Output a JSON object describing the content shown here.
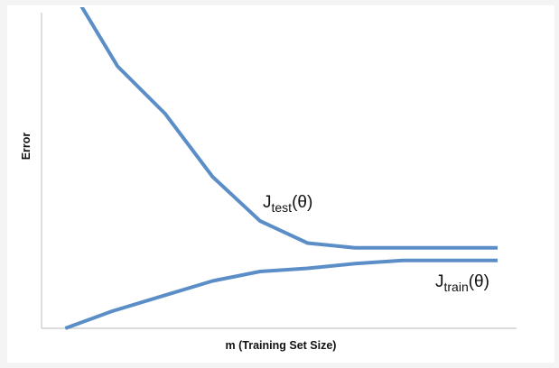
{
  "chart_data": {
    "type": "line",
    "xlabel": "m (Training Set Size)",
    "ylabel": "Error",
    "grid": false,
    "xlim": [
      0,
      10
    ],
    "ylim": [
      0,
      10
    ],
    "series": [
      {
        "name": "J_test(θ)",
        "label_main": "J",
        "label_sub": "test",
        "label_suffix": "(θ)",
        "color": "#5b8ec7",
        "points": [
          [
            0.8,
            10.3
          ],
          [
            1.6,
            8.3
          ],
          [
            2.6,
            6.8
          ],
          [
            3.6,
            4.8
          ],
          [
            4.6,
            3.4
          ],
          [
            5.6,
            2.7
          ],
          [
            6.6,
            2.55
          ],
          [
            7.6,
            2.55
          ],
          [
            8.6,
            2.55
          ],
          [
            9.6,
            2.55
          ]
        ]
      },
      {
        "name": "J_train(θ)",
        "label_main": "J",
        "label_sub": "train",
        "label_suffix": "(θ)",
        "color": "#5b8ec7",
        "points": [
          [
            0.5,
            0.0
          ],
          [
            1.5,
            0.55
          ],
          [
            2.6,
            1.05
          ],
          [
            3.6,
            1.5
          ],
          [
            4.6,
            1.8
          ],
          [
            5.6,
            1.9
          ],
          [
            6.6,
            2.05
          ],
          [
            7.6,
            2.15
          ],
          [
            8.6,
            2.15
          ],
          [
            9.6,
            2.15
          ]
        ]
      }
    ]
  }
}
